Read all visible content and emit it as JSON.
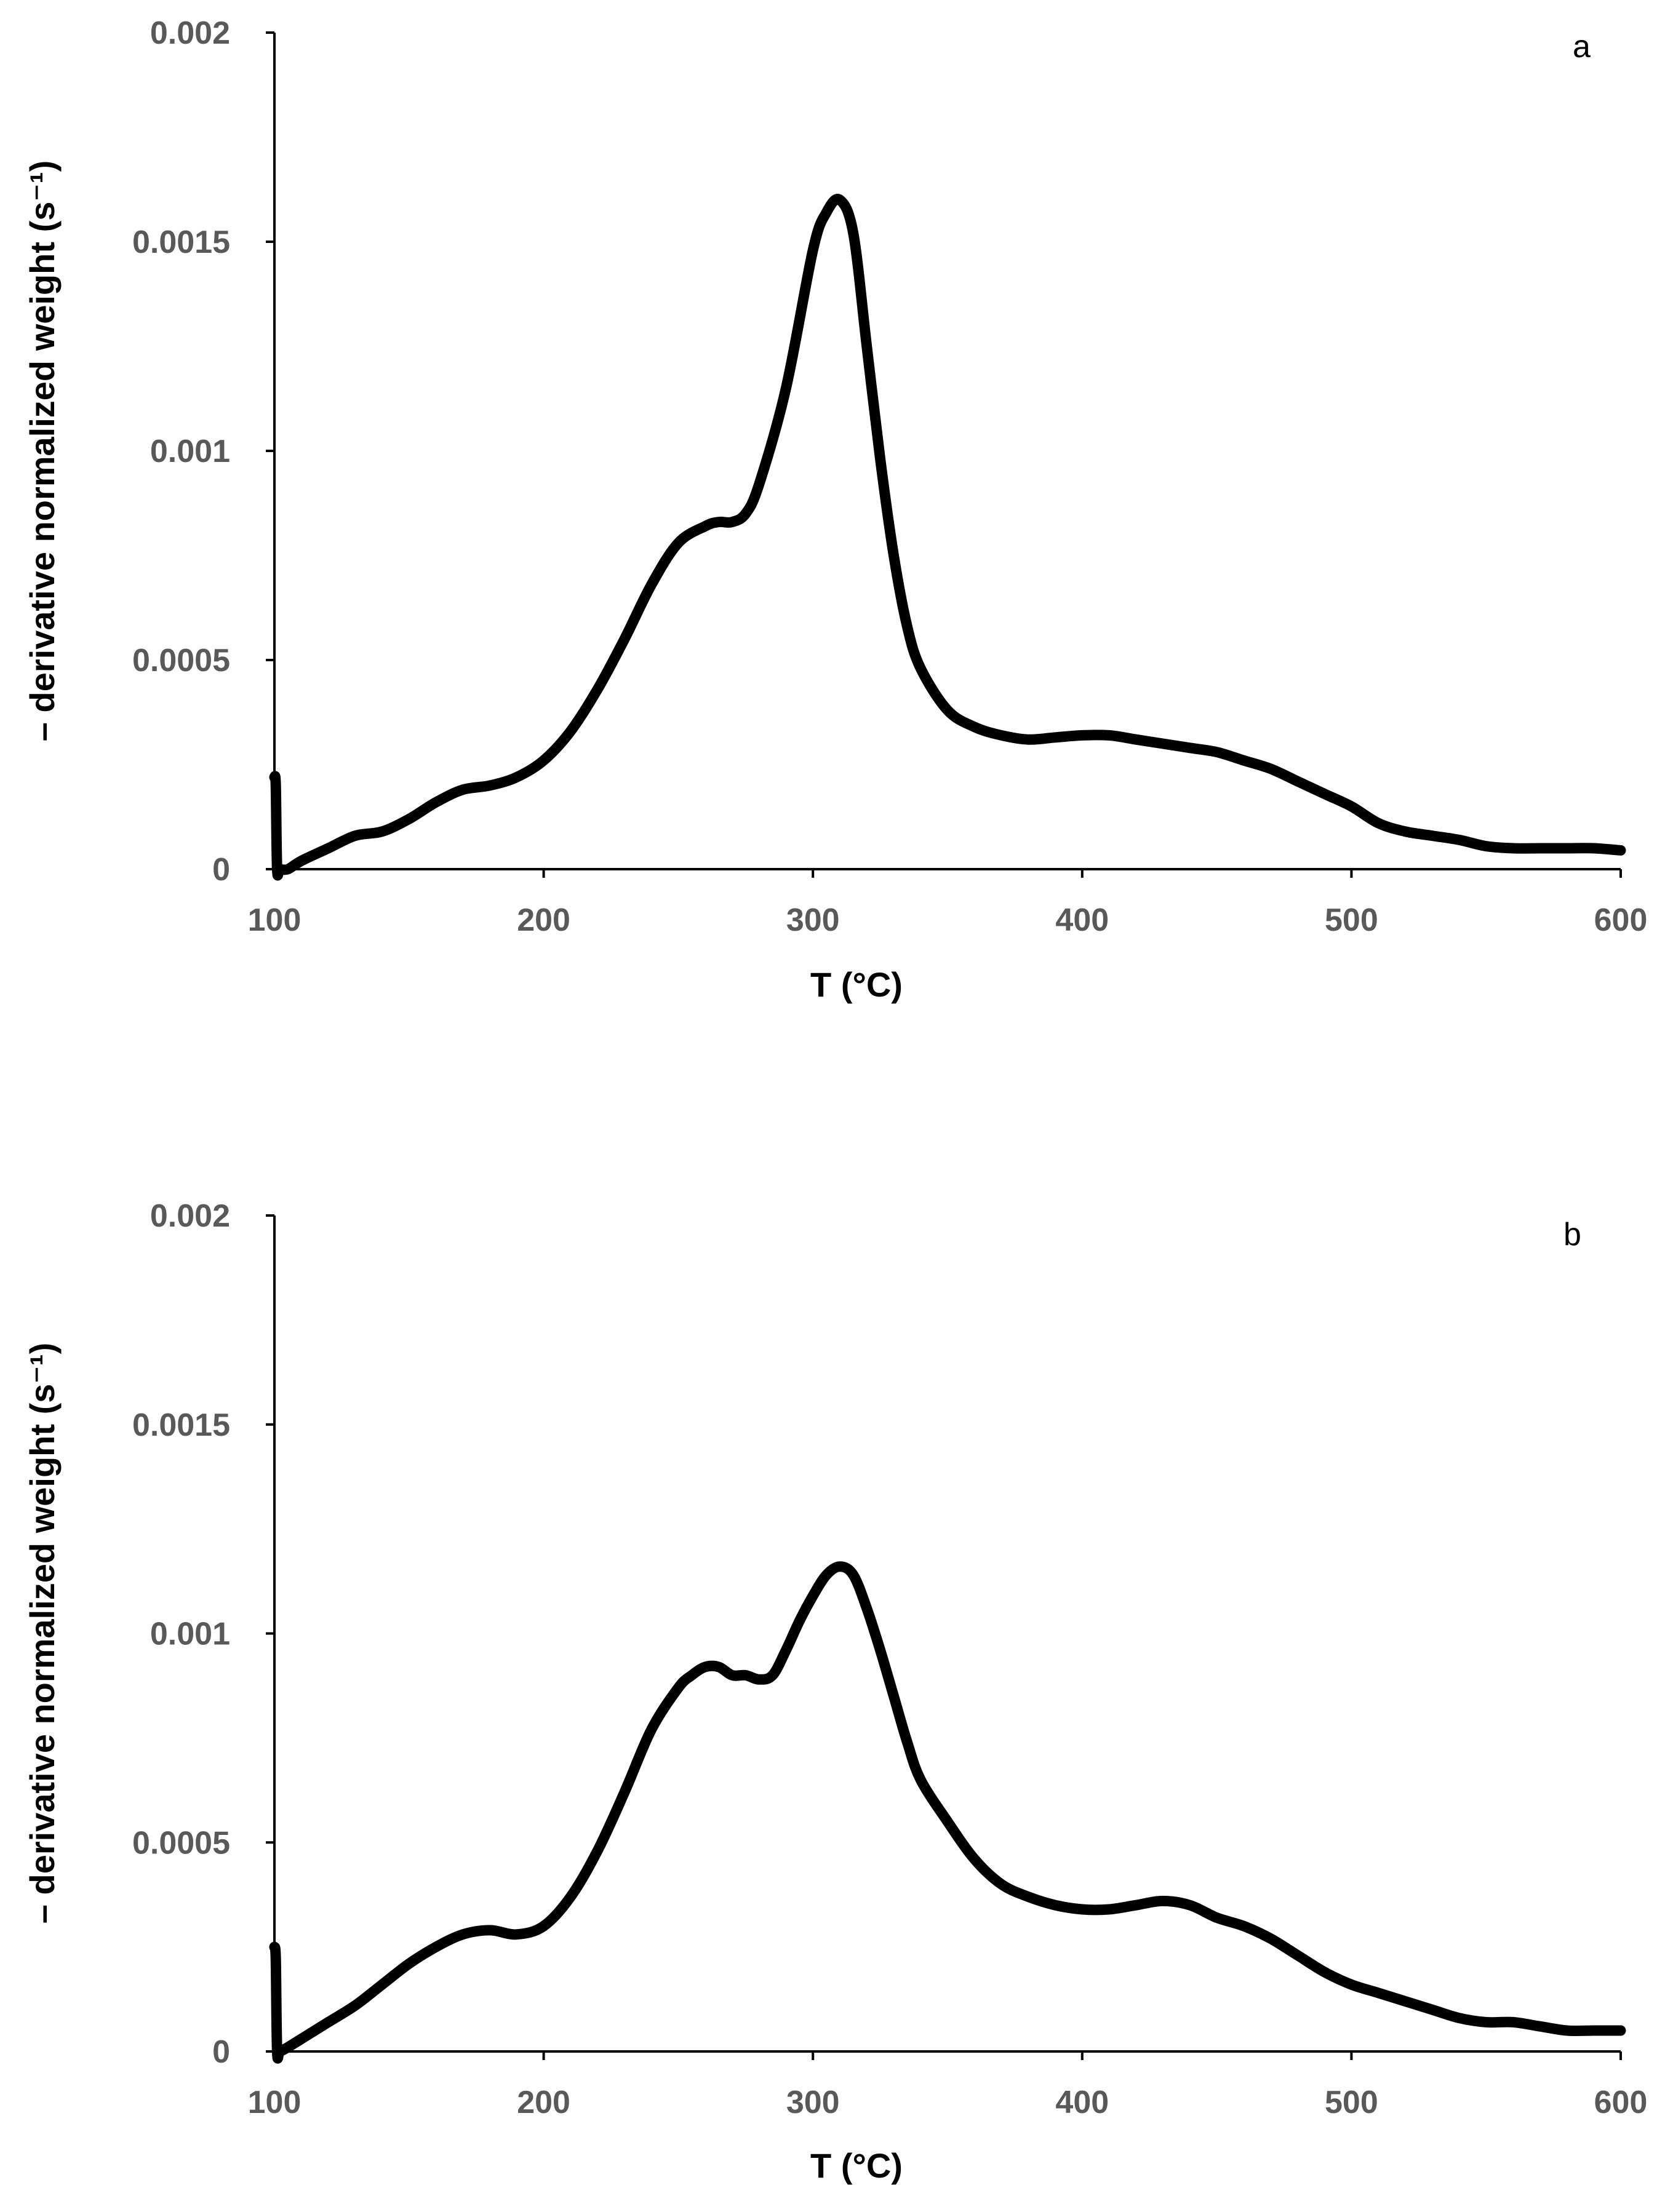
{
  "chart_data": [
    {
      "panel": "a",
      "type": "line",
      "title": "",
      "xlabel": "T (°C)",
      "ylabel": "– derivative normalized weight (s⁻¹)",
      "xlim": [
        100,
        600
      ],
      "ylim": [
        0,
        0.002
      ],
      "xticks": [
        "100",
        "200",
        "300",
        "400",
        "500",
        "600"
      ],
      "yticks": [
        "0",
        "0.0005",
        "0.001",
        "0.0015",
        "0.002"
      ],
      "grid": false,
      "series": [
        {
          "name": "a",
          "x": [
            100,
            100.5,
            101,
            102,
            105,
            110,
            120,
            130,
            140,
            150,
            160,
            170,
            180,
            190,
            200,
            210,
            220,
            230,
            240,
            250,
            260,
            265,
            270,
            275,
            280,
            290,
            300,
            305,
            310,
            315,
            320,
            325,
            330,
            335,
            340,
            350,
            360,
            370,
            380,
            390,
            400,
            410,
            420,
            430,
            440,
            450,
            460,
            470,
            480,
            490,
            500,
            510,
            520,
            530,
            540,
            550,
            560,
            570,
            580,
            590,
            600
          ],
          "y": [
            0.00022,
            0.0002,
            0.0,
            0.0,
            0.0,
            2e-05,
            5e-05,
            8e-05,
            9e-05,
            0.00012,
            0.00016,
            0.00019,
            0.0002,
            0.00022,
            0.00026,
            0.00033,
            0.00043,
            0.00055,
            0.00068,
            0.00078,
            0.00082,
            0.00083,
            0.00083,
            0.00085,
            0.00092,
            0.00115,
            0.00148,
            0.00157,
            0.0016,
            0.00152,
            0.00125,
            0.00098,
            0.00075,
            0.00058,
            0.00048,
            0.00038,
            0.00034,
            0.00032,
            0.00031,
            0.000315,
            0.00032,
            0.00032,
            0.00031,
            0.0003,
            0.00029,
            0.00028,
            0.00026,
            0.00024,
            0.00021,
            0.00018,
            0.00015,
            0.00011,
            9e-05,
            8e-05,
            7e-05,
            5.5e-05,
            5e-05,
            5e-05,
            5e-05,
            5e-05,
            4.5e-05
          ]
        }
      ]
    },
    {
      "panel": "b",
      "type": "line",
      "title": "",
      "xlabel": "T (°C)",
      "ylabel": "– derivative normalized weight (s⁻¹)",
      "xlim": [
        100,
        600
      ],
      "ylim": [
        0,
        0.002
      ],
      "xticks": [
        "100",
        "200",
        "300",
        "400",
        "500",
        "600"
      ],
      "yticks": [
        "0",
        "0.0005",
        "0.001",
        "0.0015",
        "0.002"
      ],
      "grid": false,
      "series": [
        {
          "name": "b",
          "x": [
            100,
            100.5,
            101,
            102,
            105,
            110,
            120,
            130,
            140,
            150,
            160,
            170,
            180,
            190,
            200,
            210,
            220,
            230,
            240,
            250,
            255,
            260,
            265,
            270,
            275,
            280,
            285,
            290,
            295,
            300,
            305,
            310,
            315,
            320,
            325,
            330,
            335,
            340,
            350,
            360,
            370,
            380,
            390,
            400,
            410,
            420,
            430,
            440,
            450,
            460,
            470,
            480,
            490,
            500,
            510,
            520,
            530,
            540,
            550,
            560,
            570,
            580,
            590,
            600
          ],
          "y": [
            0.00025,
            0.00022,
            0.0,
            0.0,
            1e-05,
            3e-05,
            7e-05,
            0.00011,
            0.00016,
            0.00021,
            0.00025,
            0.00028,
            0.00029,
            0.00028,
            0.0003,
            0.00037,
            0.00048,
            0.00062,
            0.00077,
            0.00087,
            0.0009,
            0.00092,
            0.00092,
            0.0009,
            0.0009,
            0.00089,
            0.0009,
            0.00096,
            0.00103,
            0.00109,
            0.00114,
            0.00116,
            0.00114,
            0.00106,
            0.00096,
            0.00085,
            0.00074,
            0.00065,
            0.00055,
            0.00046,
            0.0004,
            0.00037,
            0.00035,
            0.00034,
            0.00034,
            0.00035,
            0.00036,
            0.00035,
            0.00032,
            0.0003,
            0.00027,
            0.00023,
            0.00019,
            0.00016,
            0.00014,
            0.00012,
            0.0001,
            8e-05,
            7e-05,
            7e-05,
            6e-05,
            5e-05,
            5e-05,
            5e-05
          ]
        }
      ]
    }
  ]
}
